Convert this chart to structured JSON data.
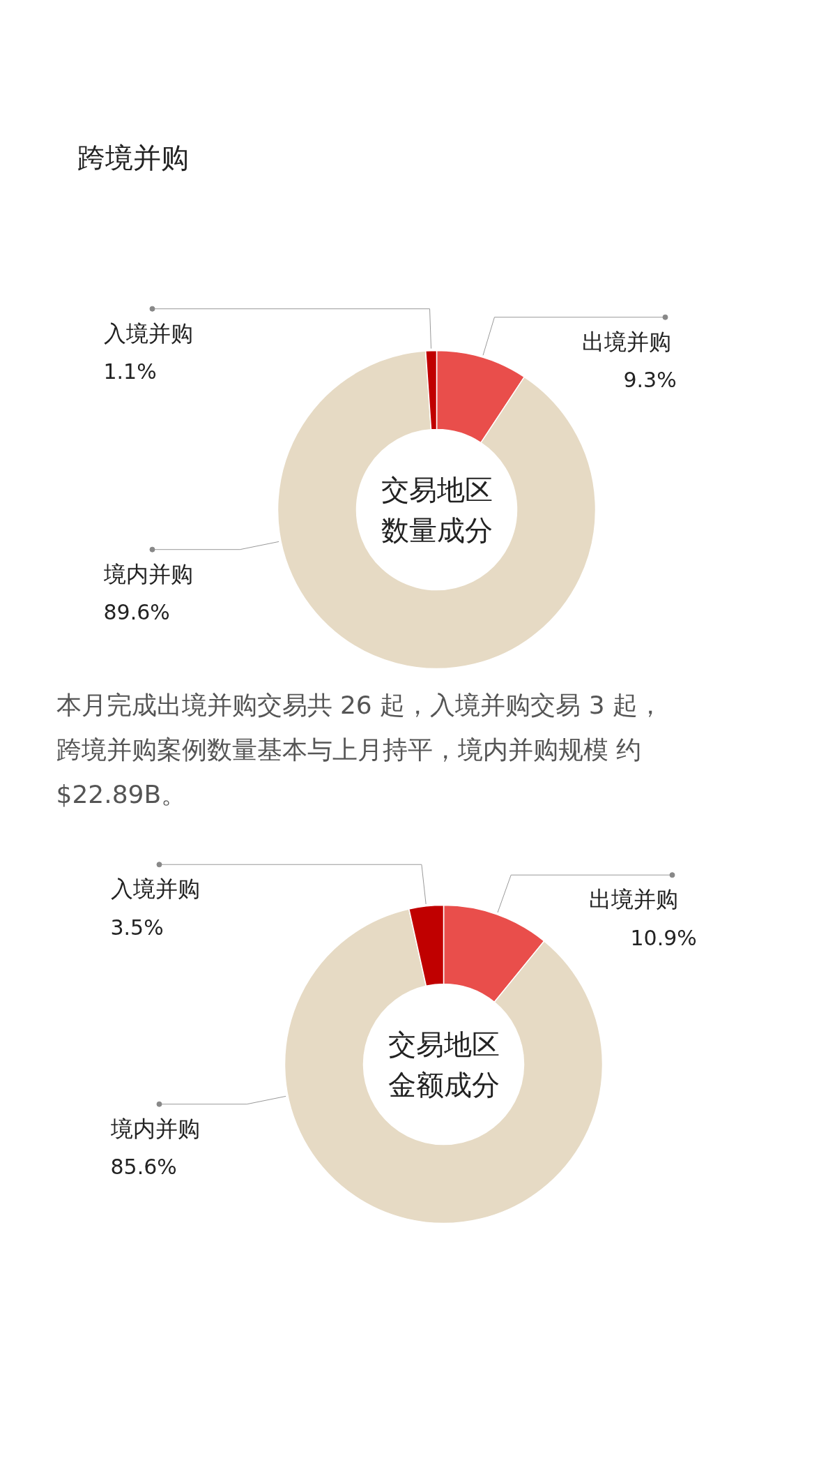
{
  "chart_data": [
    {
      "type": "donut",
      "title": "跨境并购",
      "categories": [
        "出境并购",
        "境内并购",
        "入境并购"
      ],
      "values": [
        9.3,
        89.6,
        1.1
      ],
      "value_labels": [
        "9.3%",
        "89.6%",
        "1.1%"
      ],
      "colors": [
        "#e94e4b",
        "#e6dac4",
        "#c00000"
      ],
      "annotations": [
        "交易地区数量成分",
        "本月完成出境并购交易共 26 起，入境并购交易 3 起，跨境并购案例数量基本与上月持平，境内并购规模 约 $22.89B。"
      ]
    },
    {
      "type": "donut",
      "categories": [
        "出境并购",
        "境内并购",
        "入境并购"
      ],
      "values": [
        10.9,
        85.6,
        3.5
      ],
      "value_labels": [
        "10.9%",
        "85.6%",
        "3.5%"
      ],
      "colors": [
        "#e94e4b",
        "#e6dac4",
        "#c00000"
      ],
      "annotations": [
        "交易地区金额成分"
      ]
    }
  ]
}
